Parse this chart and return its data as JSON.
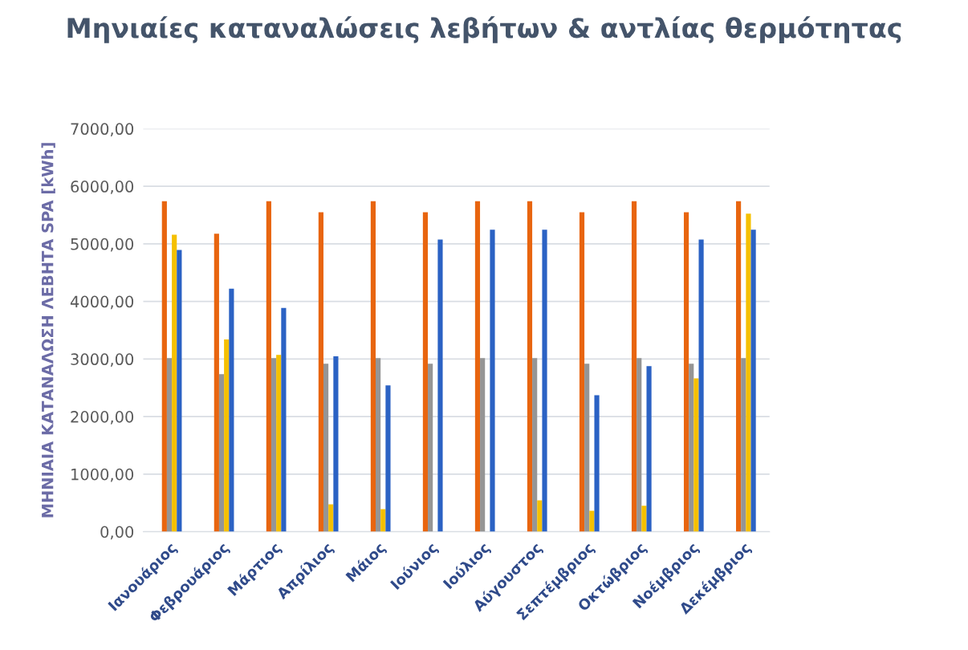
{
  "chart_data": {
    "type": "bar",
    "title": "Μηνιαίες καταναλώσεις λεβήτων & αντλίας θερμότητας",
    "ylabel": "ΜΗΝΙΑΙΑ ΚΑΤΑΝΑΛΩΣΗ ΛΕΒΗΤΑ SPA [kWh]",
    "categories": [
      "Ιανουάριος",
      "Φεβρουάριος",
      "Μάρτιος",
      "Απρίλιος",
      "Μάιος",
      "Ιούνιος",
      "Ιούλιος",
      "Αύγουστος",
      "Σεπτέμβριος",
      "Οκτώβριος",
      "Νοέμβριος",
      "Δεκέμβριος"
    ],
    "series": [
      {
        "color": "#3c9ad8",
        "values": [
          0,
          0,
          0,
          0,
          0,
          0,
          0,
          0,
          0,
          0,
          0,
          0
        ]
      },
      {
        "color": "#e8650f",
        "values": [
          5740,
          5175,
          5740,
          5550,
          5740,
          5550,
          5740,
          5740,
          5550,
          5740,
          5550,
          5740
        ]
      },
      {
        "color": "#959595",
        "values": [
          3015,
          2735,
          3015,
          2917,
          3015,
          2917,
          3015,
          3015,
          2917,
          3015,
          2917,
          3015
        ]
      },
      {
        "color": "#f5c000",
        "values": [
          5160,
          3340,
          3070,
          475,
          390,
          0,
          0,
          545,
          365,
          450,
          2665,
          5525
        ]
      },
      {
        "color": "#2b62c4",
        "values": [
          4895,
          4220,
          3885,
          3045,
          2540,
          5075,
          5245,
          5245,
          2370,
          2875,
          5075,
          5245
        ]
      }
    ],
    "ylim": [
      0,
      7000
    ],
    "yticks": [
      {
        "value": 0,
        "label": "0,00"
      },
      {
        "value": 1000,
        "label": "1000,00"
      },
      {
        "value": 2000,
        "label": "2000,00"
      },
      {
        "value": 3000,
        "label": "3000,00"
      },
      {
        "value": 4000,
        "label": "4000,00"
      },
      {
        "value": 5000,
        "label": "5000,00"
      },
      {
        "value": 6000,
        "label": "6000,00"
      },
      {
        "value": 7000,
        "label": "7000,00"
      }
    ],
    "grid": "y",
    "legend": false
  }
}
